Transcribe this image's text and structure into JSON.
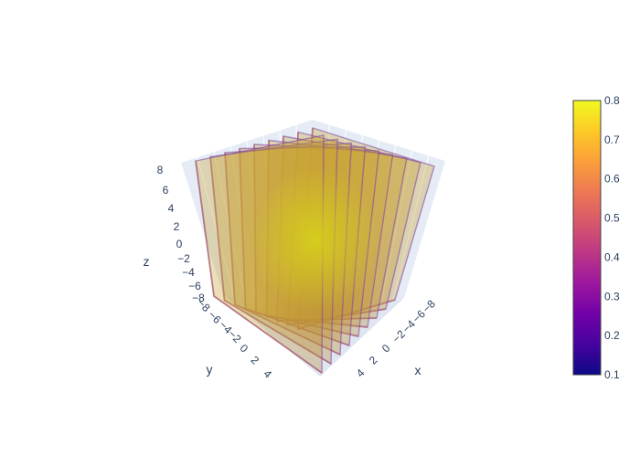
{
  "chart_data": {
    "type": "volume",
    "axes": {
      "x": {
        "title": "x",
        "tick_labels": [
          "4",
          "2",
          "0",
          "−2",
          "−4",
          "−6",
          "−8"
        ]
      },
      "y": {
        "title": "y",
        "tick_labels": [
          "−8",
          "−6",
          "−4",
          "−2",
          "0",
          "2",
          "4"
        ]
      },
      "z": {
        "title": "z",
        "tick_labels": [
          "8",
          "6",
          "4",
          "2",
          "0",
          "−2",
          "−4",
          "−6",
          "−8"
        ]
      },
      "range": [
        -8,
        8
      ],
      "grid": true,
      "background": "#e5ecf6"
    },
    "surfaces": {
      "count": 9,
      "orientation": "x",
      "x_positions": [
        -8,
        -6,
        -4,
        -2,
        0,
        2,
        4,
        6,
        8
      ],
      "opacity": 0.35
    },
    "colorbar": {
      "min": 0.1,
      "max": 0.8,
      "tick_labels": [
        "0.8",
        "0.7",
        "0.6",
        "0.5",
        "0.4",
        "0.3",
        "0.2",
        "0.1"
      ],
      "colorscale": [
        "#0d0887",
        "#46039f",
        "#7201a8",
        "#9c179e",
        "#bd3786",
        "#d8576b",
        "#ed7953",
        "#fb9f3a",
        "#fdca26",
        "#f0f921"
      ]
    }
  }
}
